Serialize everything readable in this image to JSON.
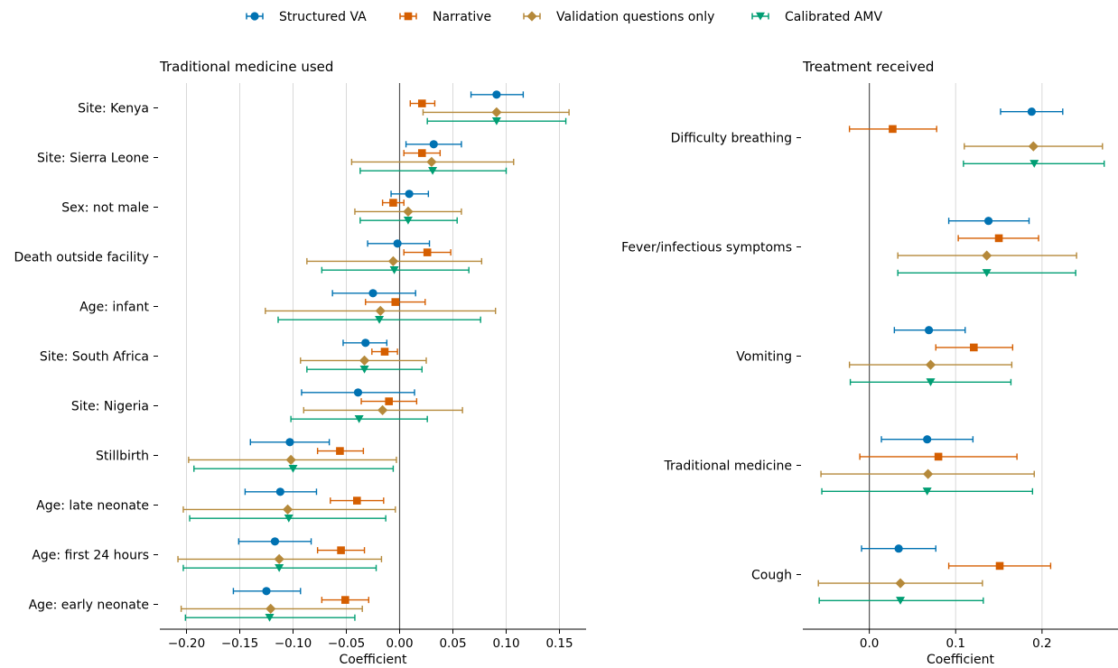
{
  "legend": {
    "placement": "top-center",
    "entries": [
      {
        "name": "Structured VA",
        "color": "#0072b2",
        "marker": "circle"
      },
      {
        "name": "Narrative",
        "color": "#d55e00",
        "marker": "square"
      },
      {
        "name": "Validation questions only",
        "color": "#b5893a",
        "marker": "diamond"
      },
      {
        "name": "Calibrated AMV",
        "color": "#009e73",
        "marker": "triangle-down"
      }
    ]
  },
  "chart_data": [
    {
      "type": "scatter",
      "subtype": "coefficient-plot-with-error-bars",
      "title": "Traditional medicine used",
      "xlabel": "Coefficient",
      "xlim": [
        -0.225,
        0.175
      ],
      "xticks": [
        -0.2,
        -0.15,
        -0.1,
        -0.05,
        0.0,
        0.05,
        0.1,
        0.15
      ],
      "xtick_labels": [
        "−0.20",
        "−0.15",
        "−0.10",
        "−0.05",
        "0.00",
        "0.05",
        "0.10",
        "0.15"
      ],
      "grid": "vertical",
      "zero_line": true,
      "categories": [
        "Site: Kenya",
        "Site: Sierra Leone",
        "Sex: not male",
        "Death outside facility",
        "Age: infant",
        "Site: South Africa",
        "Site: Nigeria",
        "Stillbirth",
        "Age: late neonate",
        "Age: first 24 hours",
        "Age: early neonate"
      ],
      "series": [
        {
          "name": "Structured VA",
          "values": [
            0.091,
            0.032,
            0.009,
            -0.002,
            -0.025,
            -0.032,
            -0.039,
            -0.103,
            -0.112,
            -0.117,
            -0.125
          ],
          "lower": [
            0.067,
            0.006,
            -0.008,
            -0.03,
            -0.063,
            -0.053,
            -0.092,
            -0.14,
            -0.145,
            -0.151,
            -0.156
          ],
          "upper": [
            0.116,
            0.058,
            0.027,
            0.028,
            0.015,
            -0.012,
            0.014,
            -0.066,
            -0.078,
            -0.083,
            -0.093
          ]
        },
        {
          "name": "Narrative",
          "values": [
            0.021,
            0.021,
            -0.006,
            0.026,
            -0.004,
            -0.014,
            -0.01,
            -0.056,
            -0.04,
            -0.055,
            -0.051
          ],
          "lower": [
            0.01,
            0.004,
            -0.016,
            0.004,
            -0.032,
            -0.026,
            -0.036,
            -0.077,
            -0.065,
            -0.077,
            -0.073
          ],
          "upper": [
            0.033,
            0.038,
            0.004,
            0.048,
            0.024,
            -0.002,
            0.016,
            -0.034,
            -0.015,
            -0.033,
            -0.029
          ]
        },
        {
          "name": "Validation questions only",
          "values": [
            0.091,
            0.03,
            0.008,
            -0.006,
            -0.018,
            -0.033,
            -0.016,
            -0.102,
            -0.105,
            -0.113,
            -0.121
          ],
          "lower": [
            0.022,
            -0.045,
            -0.042,
            -0.087,
            -0.126,
            -0.093,
            -0.09,
            -0.198,
            -0.203,
            -0.208,
            -0.205
          ],
          "upper": [
            0.159,
            0.107,
            0.058,
            0.077,
            0.09,
            0.025,
            0.059,
            -0.003,
            -0.004,
            -0.017,
            -0.035
          ]
        },
        {
          "name": "Calibrated AMV",
          "values": [
            0.091,
            0.031,
            0.008,
            -0.005,
            -0.019,
            -0.033,
            -0.038,
            -0.1,
            -0.104,
            -0.113,
            -0.122
          ],
          "lower": [
            0.026,
            -0.037,
            -0.037,
            -0.073,
            -0.114,
            -0.087,
            -0.102,
            -0.193,
            -0.197,
            -0.203,
            -0.201
          ],
          "upper": [
            0.156,
            0.1,
            0.054,
            0.065,
            0.076,
            0.021,
            0.026,
            -0.006,
            -0.013,
            -0.022,
            -0.042
          ]
        }
      ]
    },
    {
      "type": "scatter",
      "subtype": "coefficient-plot-with-error-bars",
      "title": "Treatment received",
      "xlabel": "Coefficient",
      "xlim": [
        -0.077,
        0.288
      ],
      "xticks": [
        0.0,
        0.1,
        0.2
      ],
      "xtick_labels": [
        "0.0",
        "0.1",
        "0.2"
      ],
      "grid": "vertical",
      "zero_line": true,
      "categories": [
        "Difficulty breathing",
        "Fever/infectious symptoms",
        "Vomiting",
        "Traditional medicine",
        "Cough"
      ],
      "series": [
        {
          "name": "Structured VA",
          "values": [
            0.188,
            0.138,
            0.069,
            0.067,
            0.034
          ],
          "lower": [
            0.152,
            0.092,
            0.029,
            0.014,
            -0.009
          ],
          "upper": [
            0.224,
            0.185,
            0.111,
            0.12,
            0.077
          ]
        },
        {
          "name": "Narrative",
          "values": [
            0.027,
            0.15,
            0.121,
            0.08,
            0.151
          ],
          "lower": [
            -0.023,
            0.103,
            0.077,
            -0.011,
            0.092
          ],
          "upper": [
            0.078,
            0.196,
            0.166,
            0.171,
            0.21
          ]
        },
        {
          "name": "Validation questions only",
          "values": [
            0.19,
            0.136,
            0.071,
            0.068,
            0.036
          ],
          "lower": [
            0.11,
            0.033,
            -0.023,
            -0.056,
            -0.059
          ],
          "upper": [
            0.27,
            0.24,
            0.165,
            0.191,
            0.131
          ]
        },
        {
          "name": "Calibrated AMV",
          "values": [
            0.191,
            0.136,
            0.071,
            0.067,
            0.036
          ],
          "lower": [
            0.109,
            0.033,
            -0.022,
            -0.055,
            -0.058
          ],
          "upper": [
            0.272,
            0.239,
            0.164,
            0.189,
            0.132
          ]
        }
      ]
    }
  ]
}
